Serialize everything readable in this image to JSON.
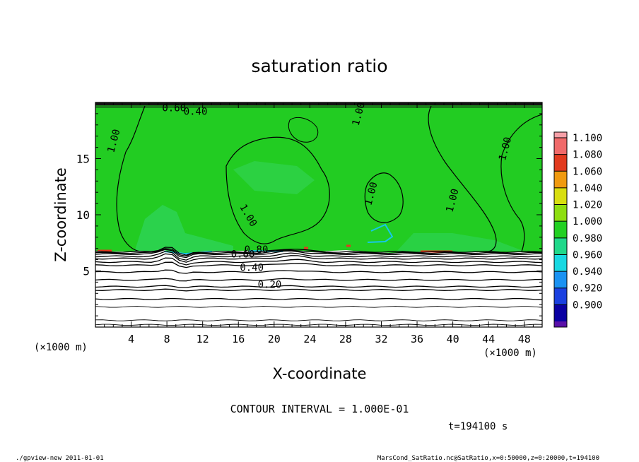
{
  "chart_data": {
    "type": "heatmap",
    "title": "saturation ratio",
    "xlabel": "X-coordinate",
    "ylabel": "Z-coordinate",
    "x_unit_left": "(×1000 m)",
    "x_unit_right": "(×1000 m)",
    "xlim": [
      0,
      50
    ],
    "ylim": [
      0,
      20
    ],
    "x_ticks": [
      4,
      8,
      12,
      16,
      20,
      24,
      28,
      32,
      36,
      40,
      44,
      48
    ],
    "y_ticks": [
      5,
      10,
      15
    ],
    "contour_interval_text": "CONTOUR INTERVAL = 1.000E-01",
    "time_text": "t=194100 s",
    "colorbar": {
      "levels": [
        "1.100",
        "1.080",
        "1.060",
        "1.040",
        "1.020",
        "1.000",
        "0.980",
        "0.960",
        "0.940",
        "0.920",
        "0.900"
      ],
      "colors": [
        "#f7a0a8",
        "#f06a6a",
        "#e23a1e",
        "#f09a10",
        "#d8de10",
        "#8ede10",
        "#22d022",
        "#20d88a",
        "#18d8e2",
        "#1a92f2",
        "#1a40e0",
        "#0a00a2",
        "#5a10a8"
      ]
    },
    "contour_labels": [
      {
        "text": "1.00",
        "x": 2.4,
        "y": 16.5
      },
      {
        "text": "1.00",
        "x": 16.8,
        "y": 9.8
      },
      {
        "text": "1.00",
        "x": 29.8,
        "y": 18.9
      },
      {
        "text": "1.00",
        "x": 46.2,
        "y": 15.8
      },
      {
        "text": "1.00",
        "x": 40.3,
        "y": 11.2
      },
      {
        "text": "1.00",
        "x": 31.2,
        "y": 11.8
      },
      {
        "text": "0.60",
        "x": 16.5,
        "y": 6.2
      },
      {
        "text": "0.80",
        "x": 18.0,
        "y": 6.6
      },
      {
        "text": "0.40",
        "x": 17.5,
        "y": 5.0
      },
      {
        "text": "0.20",
        "x": 19.5,
        "y": 3.5
      },
      {
        "text": "0.60",
        "x": 8.8,
        "y": 19.2
      },
      {
        "text": "0.40",
        "x": 11.2,
        "y": 18.9
      }
    ],
    "iso_lines": [
      0.2,
      0.6,
      1.8,
      2.5,
      3.3,
      3.6,
      4.2,
      4.9,
      5.5,
      5.8,
      6.1,
      6.3,
      6.5,
      6.6,
      6.7
    ]
  },
  "footer": {
    "left": "./gpview-new   2011-01-01",
    "right": "MarsCond_SatRatio.nc@SatRatio,x=0:50000,z=0:20000,t=194100"
  }
}
